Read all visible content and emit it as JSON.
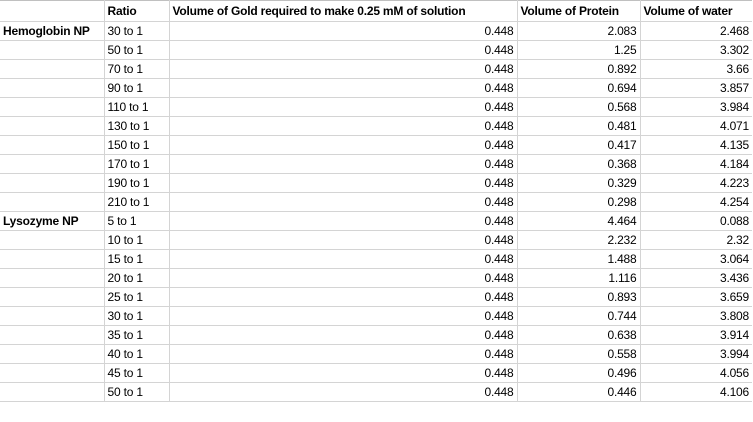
{
  "headers": [
    "",
    "Ratio",
    "Volume of Gold required to make 0.25 mM of solution",
    "Volume of Protein",
    "Volume of water"
  ],
  "rows": [
    [
      "Hemoglobin NP",
      "30 to 1",
      "0.448",
      "2.083",
      "2.468"
    ],
    [
      "",
      "50 to 1",
      "0.448",
      "1.25",
      "3.302"
    ],
    [
      "",
      "70 to 1",
      "0.448",
      "0.892",
      "3.66"
    ],
    [
      "",
      "90 to 1",
      "0.448",
      "0.694",
      "3.857"
    ],
    [
      "",
      "110 to 1",
      "0.448",
      "0.568",
      "3.984"
    ],
    [
      "",
      "130 to 1",
      "0.448",
      "0.481",
      "4.071"
    ],
    [
      "",
      "150 to 1",
      "0.448",
      "0.417",
      "4.135"
    ],
    [
      "",
      "170 to 1",
      "0.448",
      "0.368",
      "4.184"
    ],
    [
      "",
      "190 to 1",
      "0.448",
      "0.329",
      "4.223"
    ],
    [
      "",
      "210 to 1",
      "0.448",
      "0.298",
      "4.254"
    ],
    [
      "Lysozyme NP",
      "5 to 1",
      "0.448",
      "4.464",
      "0.088"
    ],
    [
      "",
      "10 to 1",
      "0.448",
      "2.232",
      "2.32"
    ],
    [
      "",
      "15 to 1",
      "0.448",
      "1.488",
      "3.064"
    ],
    [
      "",
      "20 to 1",
      "0.448",
      "1.116",
      "3.436"
    ],
    [
      "",
      "25 to 1",
      "0.448",
      "0.893",
      "3.659"
    ],
    [
      "",
      "30 to 1",
      "0.448",
      "0.744",
      "3.808"
    ],
    [
      "",
      "35 to 1",
      "0.448",
      "0.638",
      "3.914"
    ],
    [
      "",
      "40 to 1",
      "0.448",
      "0.558",
      "3.994"
    ],
    [
      "",
      "45 to 1",
      "0.448",
      "0.496",
      "4.056"
    ],
    [
      "",
      "50 to 1",
      "0.448",
      "0.446",
      "4.106"
    ]
  ]
}
